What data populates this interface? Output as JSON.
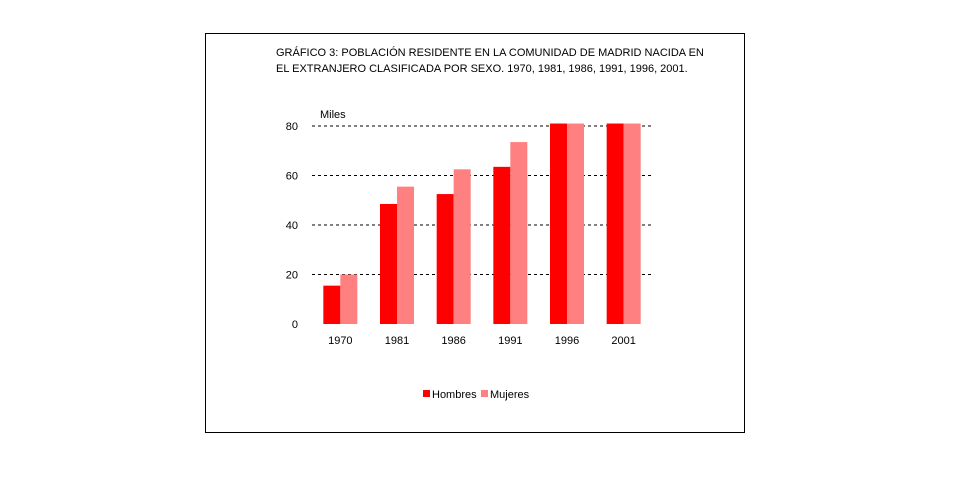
{
  "chart_data": {
    "type": "bar",
    "title_lines": [
      "GRÁFICO 3: POBLACIÓN RESIDENTE EN LA COMUNIDAD DE MADRID NACIDA EN",
      "EL EXTRANJERO CLASIFICADA POR SEXO. 1970, 1981, 1986, 1991, 1996, 2001."
    ],
    "unit_label": "Miles",
    "categories": [
      "1970",
      "1981",
      "1986",
      "1991",
      "1996",
      "2001"
    ],
    "series": [
      {
        "name": "Hombres",
        "color": "#ff0000",
        "values": [
          15.5,
          48.5,
          52.5,
          63.5,
          81,
          81
        ]
      },
      {
        "name": "Mujeres",
        "color": "#ff8080",
        "values": [
          20,
          55.5,
          62.5,
          73.5,
          81,
          81
        ]
      }
    ],
    "ylim": [
      0,
      80
    ],
    "yticks": [
      0,
      20,
      40,
      60,
      80
    ],
    "grid": true,
    "legend_position": "bottom-center"
  }
}
